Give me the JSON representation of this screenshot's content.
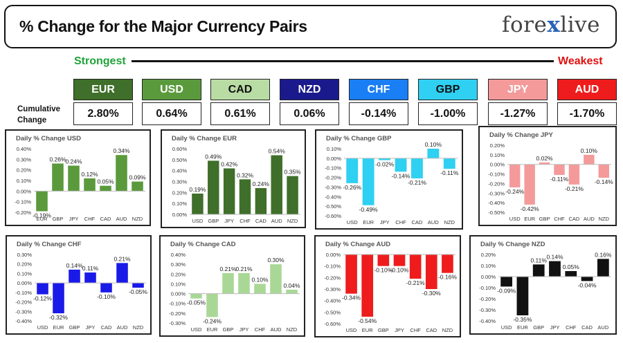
{
  "header": {
    "title": "% Change for the Major Currency Pairs",
    "logo_left": "fore",
    "logo_x": "x",
    "logo_right": "live"
  },
  "ranking": {
    "strongest_label": "Strongest",
    "weakest_label": "Weakest",
    "cumulative_label": "Cumulative Change",
    "currencies": [
      {
        "code": "EUR",
        "value": "2.80%",
        "color": "#3f6f2a",
        "text_color": "#ffffff"
      },
      {
        "code": "USD",
        "value": "0.64%",
        "color": "#5a9a3c",
        "text_color": "#ffffff"
      },
      {
        "code": "CAD",
        "value": "0.61%",
        "color": "#b9dca4",
        "text_color": "#111111"
      },
      {
        "code": "NZD",
        "value": "0.06%",
        "color": "#1a1a8c",
        "text_color": "#ffffff"
      },
      {
        "code": "CHF",
        "value": "-0.14%",
        "color": "#1a7ef5",
        "text_color": "#ffffff"
      },
      {
        "code": "GBP",
        "value": "-1.00%",
        "color": "#2fd0f2",
        "text_color": "#111111"
      },
      {
        "code": "JPY",
        "value": "-1.27%",
        "color": "#f49a9a",
        "text_color": "#ffffff"
      },
      {
        "code": "AUD",
        "value": "-1.70%",
        "color": "#ee1c1c",
        "text_color": "#ffffff"
      }
    ]
  },
  "chart_data": [
    {
      "type": "bar",
      "title": "Daily % Change USD",
      "categories": [
        "EUR",
        "GBP",
        "JPY",
        "CHF",
        "CAD",
        "AUD",
        "NZD"
      ],
      "values": [
        -0.19,
        0.26,
        0.24,
        0.12,
        0.05,
        0.34,
        0.09
      ],
      "labels": [
        "-0.19%",
        "0.26%",
        "0.24%",
        "0.12%",
        "0.05%",
        "0.34%",
        "0.09%"
      ],
      "yticks": [
        "0.40%",
        "0.30%",
        "0.20%",
        "0.10%",
        "0.00%",
        "-0.10%",
        "-0.20%"
      ],
      "ylim": [
        -0.2,
        0.4
      ],
      "color": "#5a9a3c"
    },
    {
      "type": "bar",
      "title": "Daily % Change EUR",
      "categories": [
        "USD",
        "GBP",
        "JPY",
        "CHF",
        "CAD",
        "AUD",
        "NZD"
      ],
      "values": [
        0.19,
        0.49,
        0.42,
        0.32,
        0.24,
        0.54,
        0.35
      ],
      "labels": [
        "0.19%",
        "0.49%",
        "0.42%",
        "0.32%",
        "0.24%",
        "0.54%",
        "0.35%"
      ],
      "yticks": [
        "0.60%",
        "0.50%",
        "0.40%",
        "0.30%",
        "0.20%",
        "0.10%",
        "0.00%"
      ],
      "ylim": [
        0,
        0.6
      ],
      "color": "#3f6f2a"
    },
    {
      "type": "bar",
      "title": "Daily % Change GBP",
      "categories": [
        "USD",
        "EUR",
        "JPY",
        "CHF",
        "CAD",
        "AUD",
        "NZD"
      ],
      "values": [
        -0.26,
        -0.49,
        -0.02,
        -0.14,
        -0.21,
        0.1,
        -0.11
      ],
      "labels": [
        "-0.26%",
        "-0.49%",
        "-0.02%",
        "-0.14%",
        "-0.21%",
        "0.10%",
        "-0.11%"
      ],
      "yticks": [
        "0.10%",
        "0.00%",
        "-0.10%",
        "-0.20%",
        "-0.30%",
        "-0.40%",
        "-0.50%",
        "-0.60%"
      ],
      "ylim": [
        -0.6,
        0.1
      ],
      "color": "#2fd0f2"
    },
    {
      "type": "bar",
      "title": "Daily % Change JPY",
      "categories": [
        "USD",
        "EUR",
        "GBP",
        "CHF",
        "CAD",
        "AUD",
        "NZD"
      ],
      "values": [
        -0.24,
        -0.42,
        0.02,
        -0.11,
        -0.21,
        0.1,
        -0.14
      ],
      "labels": [
        "-0.24%",
        "-0.42%",
        "0.02%",
        "-0.11%",
        "-0.21%",
        "0.10%",
        "-0.14%"
      ],
      "yticks": [
        "0.20%",
        "0.10%",
        "0.00%",
        "-0.10%",
        "-0.20%",
        "-0.30%",
        "-0.40%",
        "-0.50%"
      ],
      "ylim": [
        -0.5,
        0.2
      ],
      "color": "#f49a9a"
    },
    {
      "type": "bar",
      "title": "Daily % Change CHF",
      "categories": [
        "USD",
        "EUR",
        "GBP",
        "JPY",
        "CAD",
        "AUD",
        "NZD"
      ],
      "values": [
        -0.12,
        -0.32,
        0.14,
        0.11,
        -0.1,
        0.21,
        -0.05
      ],
      "labels": [
        "-0.12%",
        "-0.32%",
        "0.14%",
        "0.11%",
        "-0.10%",
        "0.21%",
        "-0.05%"
      ],
      "yticks": [
        "0.30%",
        "0.20%",
        "0.10%",
        "0.00%",
        "-0.10%",
        "-0.20%",
        "-0.30%",
        "-0.40%"
      ],
      "ylim": [
        -0.4,
        0.3
      ],
      "color": "#1a1ae8"
    },
    {
      "type": "bar",
      "title": "Daily % Change CAD",
      "categories": [
        "USD",
        "EUR",
        "GBP",
        "JPY",
        "CHF",
        "AUD",
        "NZD"
      ],
      "values": [
        -0.05,
        -0.24,
        0.21,
        0.21,
        0.1,
        0.3,
        0.04
      ],
      "labels": [
        "-0.05%",
        "-0.24%",
        "0.21%",
        "0.21%",
        "0.10%",
        "0.30%",
        "0.04%"
      ],
      "yticks": [
        "0.40%",
        "0.30%",
        "0.20%",
        "0.10%",
        "0.00%",
        "-0.10%",
        "-0.20%",
        "-0.30%"
      ],
      "ylim": [
        -0.3,
        0.4
      ],
      "color": "#a9d896"
    },
    {
      "type": "bar",
      "title": "Daily % Change AUD",
      "categories": [
        "USD",
        "EUR",
        "GBP",
        "JPY",
        "CHF",
        "CAD",
        "NZD"
      ],
      "values": [
        -0.34,
        -0.54,
        -0.1,
        -0.1,
        -0.21,
        -0.3,
        -0.16
      ],
      "labels": [
        "-0.34%",
        "-0.54%",
        "-0.10%",
        "-0.10%",
        "-0.21%",
        "-0.30%",
        "-0.16%"
      ],
      "yticks": [
        "0.00%",
        "-0.10%",
        "-0.20%",
        "-0.30%",
        "-0.40%",
        "-0.50%",
        "-0.60%"
      ],
      "ylim": [
        -0.6,
        0.0
      ],
      "color": "#ee1c1c"
    },
    {
      "type": "bar",
      "title": "Daily % Change NZD",
      "categories": [
        "USD",
        "EUR",
        "GBP",
        "JPY",
        "CHF",
        "CAD",
        "AUD"
      ],
      "values": [
        -0.09,
        -0.35,
        0.11,
        0.14,
        0.05,
        -0.04,
        0.16
      ],
      "labels": [
        "-0.09%",
        "-0.35%",
        "0.11%",
        "0.14%",
        "0.05%",
        "-0.04%",
        "0.16%"
      ],
      "yticks": [
        "0.20%",
        "0.10%",
        "0.00%",
        "-0.10%",
        "-0.20%",
        "-0.30%",
        "-0.40%"
      ],
      "ylim": [
        -0.4,
        0.2
      ],
      "color": "#111111"
    }
  ]
}
